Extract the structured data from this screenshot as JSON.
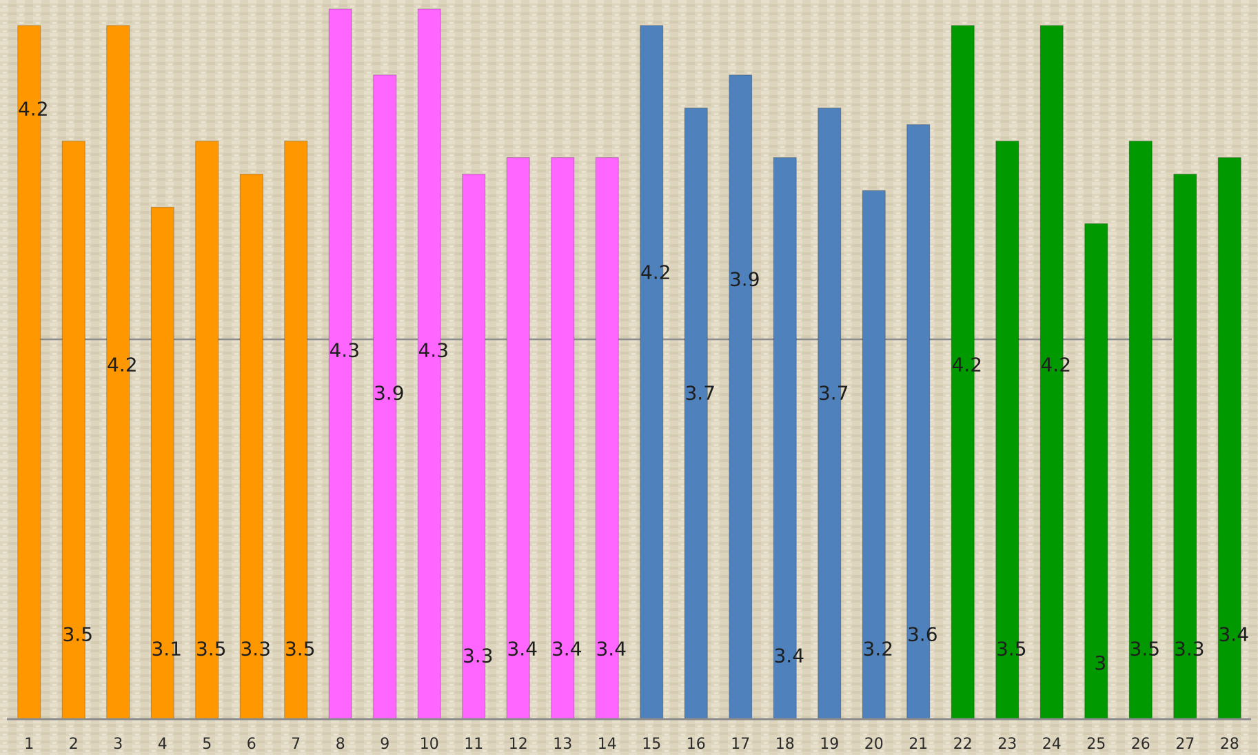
{
  "chart_data": {
    "type": "bar",
    "title": "",
    "xlabel": "",
    "ylabel": "",
    "ylim": [
      0,
      4.3
    ],
    "grid": false,
    "legend": "none",
    "reference_line": 2.3,
    "categories": [
      "1",
      "2",
      "3",
      "4",
      "5",
      "6",
      "7",
      "8",
      "9",
      "10",
      "11",
      "12",
      "13",
      "14",
      "15",
      "16",
      "17",
      "18",
      "19",
      "20",
      "21",
      "22",
      "23",
      "24",
      "25",
      "26",
      "27",
      "28"
    ],
    "values": [
      4.2,
      3.5,
      4.2,
      3.1,
      3.5,
      3.3,
      3.5,
      4.3,
      3.9,
      4.3,
      3.3,
      3.4,
      3.4,
      3.4,
      4.2,
      3.7,
      3.9,
      3.4,
      3.7,
      3.2,
      3.6,
      4.2,
      3.5,
      4.2,
      3,
      3.5,
      3.3,
      3.4
    ],
    "value_labels": [
      "4.2",
      "3.5",
      "4.2",
      "3.1",
      "3.5",
      "3.3",
      "3.5",
      "4.3",
      "3.9",
      "4.3",
      "3.3",
      "3.4",
      "3.4",
      "3.4",
      "4.2",
      "3.7",
      "3.9",
      "3.4",
      "3.7",
      "3.2",
      "3.6",
      "4.2",
      "3.5",
      "4.2",
      "3",
      "3.5",
      "3.3",
      "3.4"
    ],
    "label_positions": [
      0.85,
      0.11,
      0.49,
      0.09,
      0.09,
      0.09,
      0.09,
      0.51,
      0.45,
      0.51,
      0.08,
      0.09,
      0.09,
      0.09,
      0.62,
      0.45,
      0.61,
      0.08,
      0.45,
      0.09,
      0.11,
      0.49,
      0.09,
      0.49,
      0.07,
      0.09,
      0.09,
      0.11
    ],
    "groups": [
      {
        "from": 0,
        "to": 6,
        "color": "#ff9800"
      },
      {
        "from": 7,
        "to": 13,
        "color": "#ff66ff"
      },
      {
        "from": 14,
        "to": 20,
        "color": "#4f81bd"
      },
      {
        "from": 21,
        "to": 27,
        "color": "#009900"
      }
    ]
  }
}
